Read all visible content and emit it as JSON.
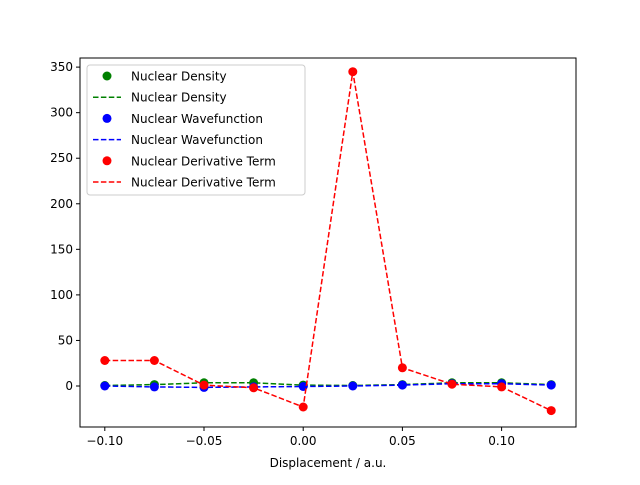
{
  "chart_data": {
    "type": "line",
    "title": "",
    "xlabel": "Displacement / a.u.",
    "ylabel": "",
    "xlim": [
      -0.1125,
      0.1375
    ],
    "ylim": [
      -45,
      360
    ],
    "x": [
      -0.1,
      -0.075,
      -0.05,
      -0.025,
      0.0,
      0.025,
      0.05,
      0.075,
      0.1,
      0.125
    ],
    "xticks": [
      -0.1,
      -0.05,
      0.0,
      0.05,
      0.1
    ],
    "xtick_labels": [
      "−0.10",
      "−0.05",
      "0.00",
      "0.05",
      "0.10"
    ],
    "yticks": [
      0,
      50,
      100,
      150,
      200,
      250,
      300,
      350
    ],
    "ytick_labels": [
      "0",
      "50",
      "100",
      "150",
      "200",
      "250",
      "300",
      "350"
    ],
    "grid": false,
    "legend_position": "top-left",
    "series": [
      {
        "name": "Nuclear Density",
        "color": "#008000",
        "values": [
          0.5,
          1.5,
          3.5,
          3.5,
          1.0,
          0.5,
          1.5,
          3.5,
          3.5,
          1.5
        ]
      },
      {
        "name": "Nuclear Wavefunction",
        "color": "#0000ff",
        "values": [
          0.0,
          -1.0,
          -1.5,
          -1.0,
          -0.5,
          0.0,
          1.0,
          2.5,
          2.5,
          1.0
        ]
      },
      {
        "name": "Nuclear Derivative Term",
        "color": "#ff0000",
        "values": [
          28,
          28,
          1,
          -2,
          -23,
          345,
          20,
          2,
          -1,
          -27
        ]
      }
    ]
  }
}
